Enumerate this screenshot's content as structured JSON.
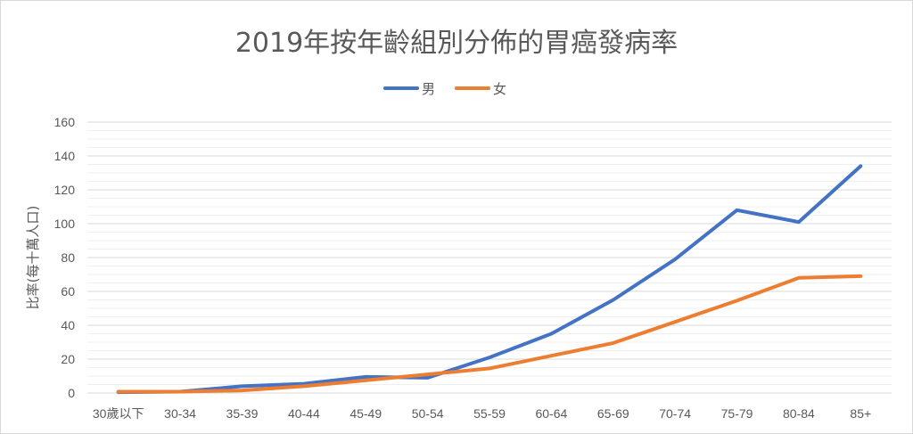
{
  "chart_data": {
    "type": "line",
    "title": "2019年按年齡組別分佈的胃癌發病率",
    "ylabel": "比率(每十萬人口)",
    "xlabel": "",
    "categories": [
      "30歲以下",
      "30-34",
      "35-39",
      "40-44",
      "45-49",
      "50-54",
      "55-59",
      "60-64",
      "65-69",
      "70-74",
      "75-79",
      "80-84",
      "85+"
    ],
    "ylim": [
      0,
      160
    ],
    "yticks": [
      "0",
      "20",
      "40",
      "60",
      "80",
      "100",
      "120",
      "140",
      "160"
    ],
    "minor_gridlines": true,
    "legend_position": "top",
    "series": [
      {
        "name": "男",
        "color": "#4472C4",
        "values": [
          0.5,
          0.8,
          4,
          5.5,
          9.5,
          9,
          21,
          35,
          55,
          79,
          108,
          101,
          134
        ]
      },
      {
        "name": "女",
        "color": "#ED7D31",
        "values": [
          0.8,
          0.8,
          1.5,
          4,
          7.5,
          11,
          14.5,
          22,
          29.5,
          42,
          54.5,
          68,
          69
        ]
      }
    ]
  }
}
